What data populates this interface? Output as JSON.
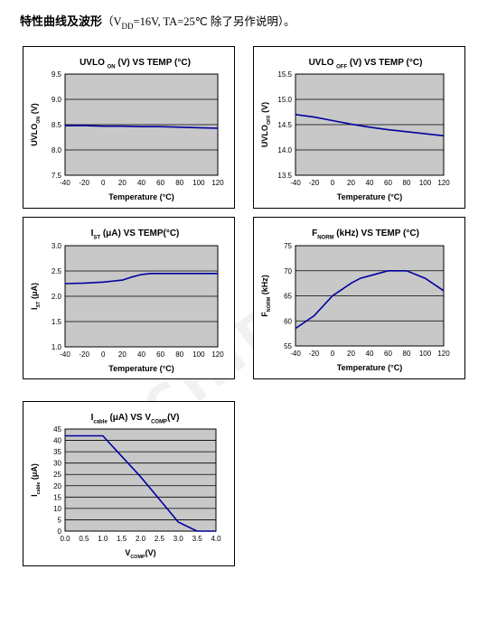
{
  "heading": {
    "main": "特性曲线及波形",
    "sub_open": "（V",
    "sub_sub": "DD",
    "sub_rest": "=16V, TA=25℃ 除了另作说明）。"
  },
  "colors": {
    "plot_bg": "#c8c8c8",
    "line": "#0000a0",
    "grid": "#000000"
  },
  "chart_data": [
    {
      "type": "line",
      "title": [
        [
          "UVLO ",
          ""
        ],
        [
          "ON",
          "sub"
        ],
        [
          " (V) VS TEMP (°C)",
          ""
        ]
      ],
      "xlabel": [
        [
          "Temperature (°C)",
          ""
        ]
      ],
      "ylabel": [
        [
          "UVLO",
          ""
        ],
        [
          "ON",
          "sub"
        ],
        [
          "  (V)",
          ""
        ]
      ],
      "x": [
        -40,
        -20,
        0,
        20,
        40,
        60,
        80,
        100,
        120
      ],
      "y": [
        8.48,
        8.48,
        8.47,
        8.47,
        8.46,
        8.46,
        8.45,
        8.44,
        8.43
      ],
      "xlim": [
        -40,
        120
      ],
      "ylim": [
        7.5,
        9.5
      ],
      "xticks": [
        -40,
        -20,
        0,
        20,
        40,
        60,
        80,
        100,
        120
      ],
      "yticks": [
        7.5,
        8.0,
        8.5,
        9.0,
        9.5
      ],
      "ydec": 1,
      "xdec": 0,
      "grid": true
    },
    {
      "type": "line",
      "title": [
        [
          "UVLO ",
          ""
        ],
        [
          "OFF",
          "sub"
        ],
        [
          " (V) VS TEMP (°C)",
          ""
        ]
      ],
      "xlabel": [
        [
          "Temperature (°C)",
          ""
        ]
      ],
      "ylabel": [
        [
          "UVLO",
          ""
        ],
        [
          "OFF",
          "sub"
        ],
        [
          "  (V)",
          ""
        ]
      ],
      "x": [
        -40,
        -20,
        0,
        20,
        40,
        60,
        80,
        100,
        120
      ],
      "y": [
        14.7,
        14.65,
        14.58,
        14.51,
        14.45,
        14.4,
        14.36,
        14.32,
        14.28
      ],
      "xlim": [
        -40,
        120
      ],
      "ylim": [
        13.5,
        15.5
      ],
      "xticks": [
        -40,
        -20,
        0,
        20,
        40,
        60,
        80,
        100,
        120
      ],
      "yticks": [
        13.5,
        14.0,
        14.5,
        15.0,
        15.5
      ],
      "ydec": 1,
      "xdec": 0,
      "grid": true
    },
    {
      "type": "line",
      "title": [
        [
          "I",
          ""
        ],
        [
          "ST",
          "sub"
        ],
        [
          " (μA) VS TEMP(°C)",
          ""
        ]
      ],
      "xlabel": [
        [
          "Temperature (°C)",
          ""
        ]
      ],
      "ylabel": [
        [
          "I",
          ""
        ],
        [
          "ST",
          "sub"
        ],
        [
          " (μA)",
          ""
        ]
      ],
      "x": [
        -40,
        -20,
        0,
        20,
        30,
        40,
        50,
        60,
        80,
        100,
        120
      ],
      "y": [
        2.25,
        2.26,
        2.28,
        2.32,
        2.38,
        2.43,
        2.45,
        2.45,
        2.45,
        2.45,
        2.45
      ],
      "xlim": [
        -40,
        120
      ],
      "ylim": [
        1.0,
        3.0
      ],
      "xticks": [
        -40,
        -20,
        0,
        20,
        40,
        60,
        80,
        100,
        120
      ],
      "yticks": [
        1.0,
        1.5,
        2.0,
        2.5,
        3.0
      ],
      "ydec": 1,
      "xdec": 0,
      "grid": true
    },
    {
      "type": "line",
      "title": [
        [
          "F",
          ""
        ],
        [
          "NORM",
          "sub"
        ],
        [
          " (kHz) VS TEMP (°C)",
          ""
        ]
      ],
      "xlabel": [
        [
          "Temperature (°C)",
          ""
        ]
      ],
      "ylabel": [
        [
          "F",
          ""
        ],
        [
          "NORM",
          "sub"
        ],
        [
          " (kHz)",
          ""
        ]
      ],
      "x": [
        -40,
        -20,
        0,
        20,
        30,
        40,
        60,
        80,
        100,
        120
      ],
      "y": [
        58.5,
        61,
        65,
        67.5,
        68.5,
        69,
        70,
        70,
        68.5,
        66
      ],
      "xlim": [
        -40,
        120
      ],
      "ylim": [
        55,
        75
      ],
      "xticks": [
        -40,
        -20,
        0,
        20,
        40,
        60,
        80,
        100,
        120
      ],
      "yticks": [
        55,
        60,
        65,
        70,
        75
      ],
      "ydec": 0,
      "xdec": 0,
      "grid": true
    },
    {
      "type": "line",
      "title": [
        [
          "I",
          ""
        ],
        [
          "cable",
          "sub"
        ],
        [
          " (μA)  VS  V",
          ""
        ],
        [
          "COMP",
          "sub"
        ],
        [
          "(V)",
          ""
        ]
      ],
      "xlabel": [
        [
          "V",
          ""
        ],
        [
          "COMP",
          "sub"
        ],
        [
          "(V)",
          ""
        ]
      ],
      "ylabel": [
        [
          "I",
          ""
        ],
        [
          "cable",
          "sub"
        ],
        [
          " (μA)",
          ""
        ]
      ],
      "x": [
        0,
        1.0,
        1.5,
        2.0,
        2.5,
        3.0,
        3.5,
        4.0
      ],
      "y": [
        42,
        42,
        33,
        24,
        14,
        4,
        0,
        0
      ],
      "xlim": [
        0,
        4
      ],
      "ylim": [
        0,
        45
      ],
      "xticks": [
        0,
        0.5,
        1.0,
        1.5,
        2.0,
        2.5,
        3.0,
        3.5,
        4.0
      ],
      "yticks": [
        0,
        5,
        10,
        15,
        20,
        25,
        30,
        35,
        40,
        45
      ],
      "ydec": 0,
      "xdec": 1,
      "grid": true
    }
  ]
}
